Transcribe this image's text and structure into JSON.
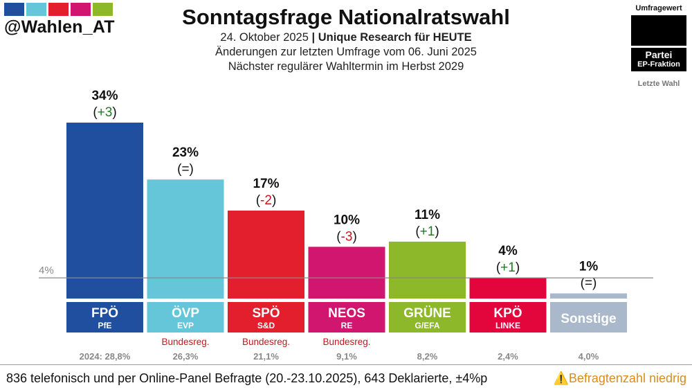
{
  "brand": {
    "handle": "@Wahlen_AT",
    "swatches": [
      "#1f4f9e",
      "#65c6d9",
      "#e31e2d",
      "#d0166f",
      "#8cb82a"
    ]
  },
  "header": {
    "title": "Sonntagsfrage Nationalratswahl",
    "date": "24. Oktober 2025",
    "separator": "|",
    "institute": "Unique Research für HEUTE",
    "comparison": "Änderungen zur letzten Umfrage vom 06. Juni 2025",
    "next_election": "Nächster regulärer Wahltermin im Herbst 2029"
  },
  "legend": {
    "value_label": "Umfragewert",
    "party_label": "Partei",
    "faction_label": "EP-Fraktion",
    "last_election_label": "Letzte Wahl"
  },
  "chart_data": {
    "type": "bar",
    "title": "Sonntagsfrage Nationalratswahl",
    "threshold": 4,
    "threshold_label": "4%",
    "ylim": [
      0,
      34
    ],
    "last_election_prefix": "2024: ",
    "bars": [
      {
        "party": "FPÖ",
        "faction": "PfE",
        "value": 34,
        "label": "34%",
        "change": "(+3)",
        "change_sign": "up",
        "color": "#1f4f9e",
        "government": "",
        "last_election": "28,8%"
      },
      {
        "party": "ÖVP",
        "faction": "EVP",
        "value": 23,
        "label": "23%",
        "change": "(=)",
        "change_sign": "same",
        "color": "#65c6d9",
        "government": "Bundesreg.",
        "last_election": "26,3%"
      },
      {
        "party": "SPÖ",
        "faction": "S&D",
        "value": 17,
        "label": "17%",
        "change": "(-2)",
        "change_sign": "down",
        "color": "#e31e2d",
        "government": "Bundesreg.",
        "last_election": "21,1%"
      },
      {
        "party": "NEOS",
        "faction": "RE",
        "value": 10,
        "label": "10%",
        "change": "(-3)",
        "change_sign": "down",
        "color": "#d0166f",
        "government": "Bundesreg.",
        "last_election": "9,1%"
      },
      {
        "party": "GRÜNE",
        "faction": "G/EFA",
        "value": 11,
        "label": "11%",
        "change": "(+1)",
        "change_sign": "up",
        "color": "#8cb82a",
        "government": "",
        "last_election": "8,2%"
      },
      {
        "party": "KPÖ",
        "faction": "LINKE",
        "value": 4,
        "label": "4%",
        "change": "(+1)",
        "change_sign": "up",
        "color": "#e3063c",
        "government": "",
        "last_election": "2,4%"
      },
      {
        "party": "Sonstige",
        "faction": "",
        "value": 1,
        "label": "1%",
        "change": "(=)",
        "change_sign": "same",
        "color": "#aab8cc",
        "government": "",
        "last_election": "4,0%"
      }
    ],
    "colors": {
      "up": "#1a7f1a",
      "down": "#c8141e",
      "same": "#111111",
      "government": "#c8141e",
      "last": "#888888"
    }
  },
  "footer": {
    "sample": "836 telefonisch und per Online-Panel Befragte (20.-23.10.2025), 643 Deklarierte, ±4%p",
    "warning_icon": "warning-icon",
    "warning": "Befragtenzahl niedrig"
  }
}
